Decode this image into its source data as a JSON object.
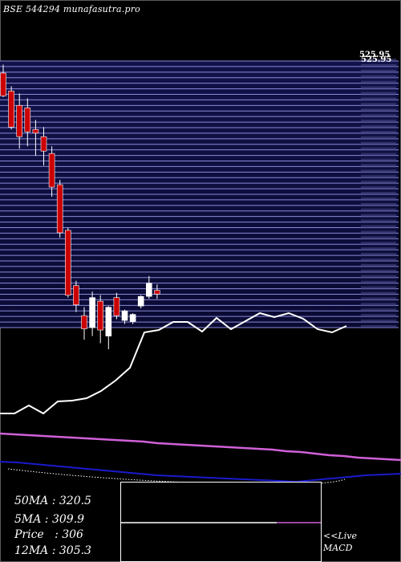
{
  "header": {
    "title": "BSE 544294  munafasutra.pro"
  },
  "price_label": "525.95",
  "stats": {
    "ma50": "50MA : 320.5",
    "ma5": "5MA : 309.9",
    "price": "Price   : 306",
    "ma12": "12MA : 305.3"
  },
  "macd": {
    "line1": "<<Live",
    "line2": "MACD"
  },
  "chart_data": {
    "type": "candlestick",
    "ylim": [
      285,
      525
    ],
    "candles": [
      {
        "o": 515,
        "h": 522,
        "l": 495,
        "c": 496,
        "color": "red"
      },
      {
        "o": 500,
        "h": 504,
        "l": 468,
        "c": 470,
        "color": "red"
      },
      {
        "o": 488,
        "h": 498,
        "l": 452,
        "c": 462,
        "color": "red"
      },
      {
        "o": 486,
        "h": 494,
        "l": 454,
        "c": 466,
        "color": "red"
      },
      {
        "o": 468,
        "h": 476,
        "l": 446,
        "c": 465,
        "color": "red"
      },
      {
        "o": 462,
        "h": 470,
        "l": 438,
        "c": 450,
        "color": "red"
      },
      {
        "o": 448,
        "h": 454,
        "l": 412,
        "c": 420,
        "color": "red"
      },
      {
        "o": 422,
        "h": 426,
        "l": 378,
        "c": 382,
        "color": "red"
      },
      {
        "o": 384,
        "h": 386,
        "l": 328,
        "c": 330,
        "color": "red"
      },
      {
        "o": 338,
        "h": 342,
        "l": 316,
        "c": 322,
        "color": "red"
      },
      {
        "o": 313,
        "h": 320,
        "l": 293,
        "c": 302,
        "color": "red"
      },
      {
        "o": 303,
        "h": 333,
        "l": 296,
        "c": 328,
        "color": "white"
      },
      {
        "o": 325,
        "h": 330,
        "l": 290,
        "c": 301,
        "color": "red"
      },
      {
        "o": 296,
        "h": 321,
        "l": 285,
        "c": 320,
        "color": "white"
      },
      {
        "o": 313,
        "h": 332,
        "l": 310,
        "c": 328,
        "color": "red"
      },
      {
        "o": 309,
        "h": 318,
        "l": 306,
        "c": 317,
        "color": "white"
      },
      {
        "o": 308,
        "h": 315,
        "l": 306,
        "c": 314,
        "color": "white"
      },
      {
        "o": 321,
        "h": 330,
        "l": 319,
        "c": 329,
        "color": "white"
      },
      {
        "o": 329,
        "h": 346,
        "l": 327,
        "c": 340,
        "color": "white"
      },
      {
        "o": 334,
        "h": 339,
        "l": 327,
        "c": 331,
        "color": "red"
      }
    ],
    "lower_panel": {
      "white_line": [
        515,
        515,
        505,
        515,
        500,
        499,
        496,
        487,
        474,
        458,
        414,
        411,
        401,
        401,
        413,
        396,
        410,
        400,
        390,
        395,
        390,
        397,
        410,
        414,
        406
      ],
      "pink_line": [
        540,
        541,
        542,
        543,
        544,
        545,
        546,
        547,
        548,
        549,
        550,
        552,
        553,
        554,
        555,
        556,
        557,
        558,
        559,
        560,
        562,
        563,
        565,
        567,
        568,
        570,
        571,
        572,
        573
      ],
      "blue_line": [
        575,
        576,
        578,
        580,
        582,
        584,
        586,
        588,
        590,
        592,
        593,
        594,
        595,
        596,
        597,
        598,
        599,
        600,
        598,
        596,
        594,
        592,
        591,
        590
      ]
    },
    "macd_histogram_marker": 0.56
  }
}
